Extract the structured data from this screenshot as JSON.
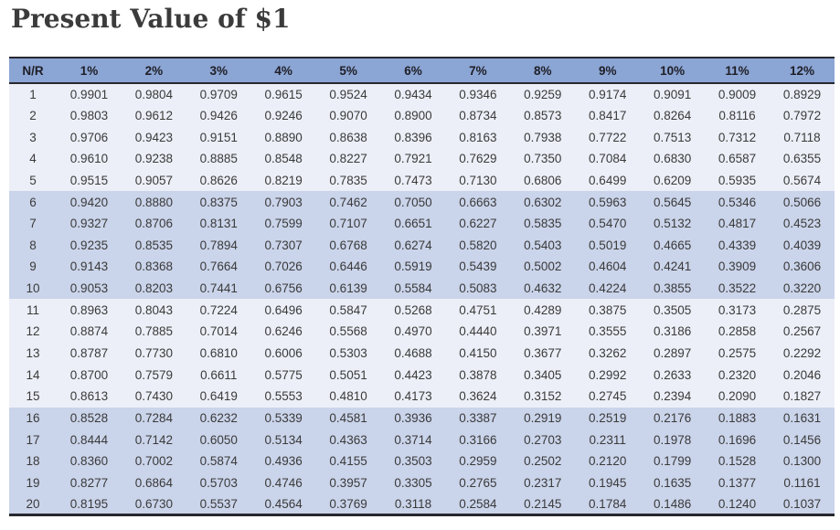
{
  "title": "Present Value of $1",
  "colors": {
    "header_bg": "#8BA5D4",
    "band_light": "#ECEFF7",
    "band_dark": "#CAD4EA",
    "border_dark": "#27272E",
    "text": "#3A3A3A",
    "header_text": "#1E1E26",
    "title_text": "#3B3B3B"
  },
  "chart_data": {
    "type": "table",
    "title": "Present Value of $1",
    "row_banding": "groups of 5 rows alternate light/dark blue",
    "columns": [
      "N/R",
      "1%",
      "2%",
      "3%",
      "4%",
      "5%",
      "6%",
      "7%",
      "8%",
      "9%",
      "10%",
      "11%",
      "12%"
    ],
    "rows": [
      [
        "1",
        "0.9901",
        "0.9804",
        "0.9709",
        "0.9615",
        "0.9524",
        "0.9434",
        "0.9346",
        "0.9259",
        "0.9174",
        "0.9091",
        "0.9009",
        "0.8929"
      ],
      [
        "2",
        "0.9803",
        "0.9612",
        "0.9426",
        "0.9246",
        "0.9070",
        "0.8900",
        "0.8734",
        "0.8573",
        "0.8417",
        "0.8264",
        "0.8116",
        "0.7972"
      ],
      [
        "3",
        "0.9706",
        "0.9423",
        "0.9151",
        "0.8890",
        "0.8638",
        "0.8396",
        "0.8163",
        "0.7938",
        "0.7722",
        "0.7513",
        "0.7312",
        "0.7118"
      ],
      [
        "4",
        "0.9610",
        "0.9238",
        "0.8885",
        "0.8548",
        "0.8227",
        "0.7921",
        "0.7629",
        "0.7350",
        "0.7084",
        "0.6830",
        "0.6587",
        "0.6355"
      ],
      [
        "5",
        "0.9515",
        "0.9057",
        "0.8626",
        "0.8219",
        "0.7835",
        "0.7473",
        "0.7130",
        "0.6806",
        "0.6499",
        "0.6209",
        "0.5935",
        "0.5674"
      ],
      [
        "6",
        "0.9420",
        "0.8880",
        "0.8375",
        "0.7903",
        "0.7462",
        "0.7050",
        "0.6663",
        "0.6302",
        "0.5963",
        "0.5645",
        "0.5346",
        "0.5066"
      ],
      [
        "7",
        "0.9327",
        "0.8706",
        "0.8131",
        "0.7599",
        "0.7107",
        "0.6651",
        "0.6227",
        "0.5835",
        "0.5470",
        "0.5132",
        "0.4817",
        "0.4523"
      ],
      [
        "8",
        "0.9235",
        "0.8535",
        "0.7894",
        "0.7307",
        "0.6768",
        "0.6274",
        "0.5820",
        "0.5403",
        "0.5019",
        "0.4665",
        "0.4339",
        "0.4039"
      ],
      [
        "9",
        "0.9143",
        "0.8368",
        "0.7664",
        "0.7026",
        "0.6446",
        "0.5919",
        "0.5439",
        "0.5002",
        "0.4604",
        "0.4241",
        "0.3909",
        "0.3606"
      ],
      [
        "10",
        "0.9053",
        "0.8203",
        "0.7441",
        "0.6756",
        "0.6139",
        "0.5584",
        "0.5083",
        "0.4632",
        "0.4224",
        "0.3855",
        "0.3522",
        "0.3220"
      ],
      [
        "11",
        "0.8963",
        "0.8043",
        "0.7224",
        "0.6496",
        "0.5847",
        "0.5268",
        "0.4751",
        "0.4289",
        "0.3875",
        "0.3505",
        "0.3173",
        "0.2875"
      ],
      [
        "12",
        "0.8874",
        "0.7885",
        "0.7014",
        "0.6246",
        "0.5568",
        "0.4970",
        "0.4440",
        "0.3971",
        "0.3555",
        "0.3186",
        "0.2858",
        "0.2567"
      ],
      [
        "13",
        "0.8787",
        "0.7730",
        "0.6810",
        "0.6006",
        "0.5303",
        "0.4688",
        "0.4150",
        "0.3677",
        "0.3262",
        "0.2897",
        "0.2575",
        "0.2292"
      ],
      [
        "14",
        "0.8700",
        "0.7579",
        "0.6611",
        "0.5775",
        "0.5051",
        "0.4423",
        "0.3878",
        "0.3405",
        "0.2992",
        "0.2633",
        "0.2320",
        "0.2046"
      ],
      [
        "15",
        "0.8613",
        "0.7430",
        "0.6419",
        "0.5553",
        "0.4810",
        "0.4173",
        "0.3624",
        "0.3152",
        "0.2745",
        "0.2394",
        "0.2090",
        "0.1827"
      ],
      [
        "16",
        "0.8528",
        "0.7284",
        "0.6232",
        "0.5339",
        "0.4581",
        "0.3936",
        "0.3387",
        "0.2919",
        "0.2519",
        "0.2176",
        "0.1883",
        "0.1631"
      ],
      [
        "17",
        "0.8444",
        "0.7142",
        "0.6050",
        "0.5134",
        "0.4363",
        "0.3714",
        "0.3166",
        "0.2703",
        "0.2311",
        "0.1978",
        "0.1696",
        "0.1456"
      ],
      [
        "18",
        "0.8360",
        "0.7002",
        "0.5874",
        "0.4936",
        "0.4155",
        "0.3503",
        "0.2959",
        "0.2502",
        "0.2120",
        "0.1799",
        "0.1528",
        "0.1300"
      ],
      [
        "19",
        "0.8277",
        "0.6864",
        "0.5703",
        "0.4746",
        "0.3957",
        "0.3305",
        "0.2765",
        "0.2317",
        "0.1945",
        "0.1635",
        "0.1377",
        "0.1161"
      ],
      [
        "20",
        "0.8195",
        "0.6730",
        "0.5537",
        "0.4564",
        "0.3769",
        "0.3118",
        "0.2584",
        "0.2145",
        "0.1784",
        "0.1486",
        "0.1240",
        "0.1037"
      ]
    ]
  }
}
